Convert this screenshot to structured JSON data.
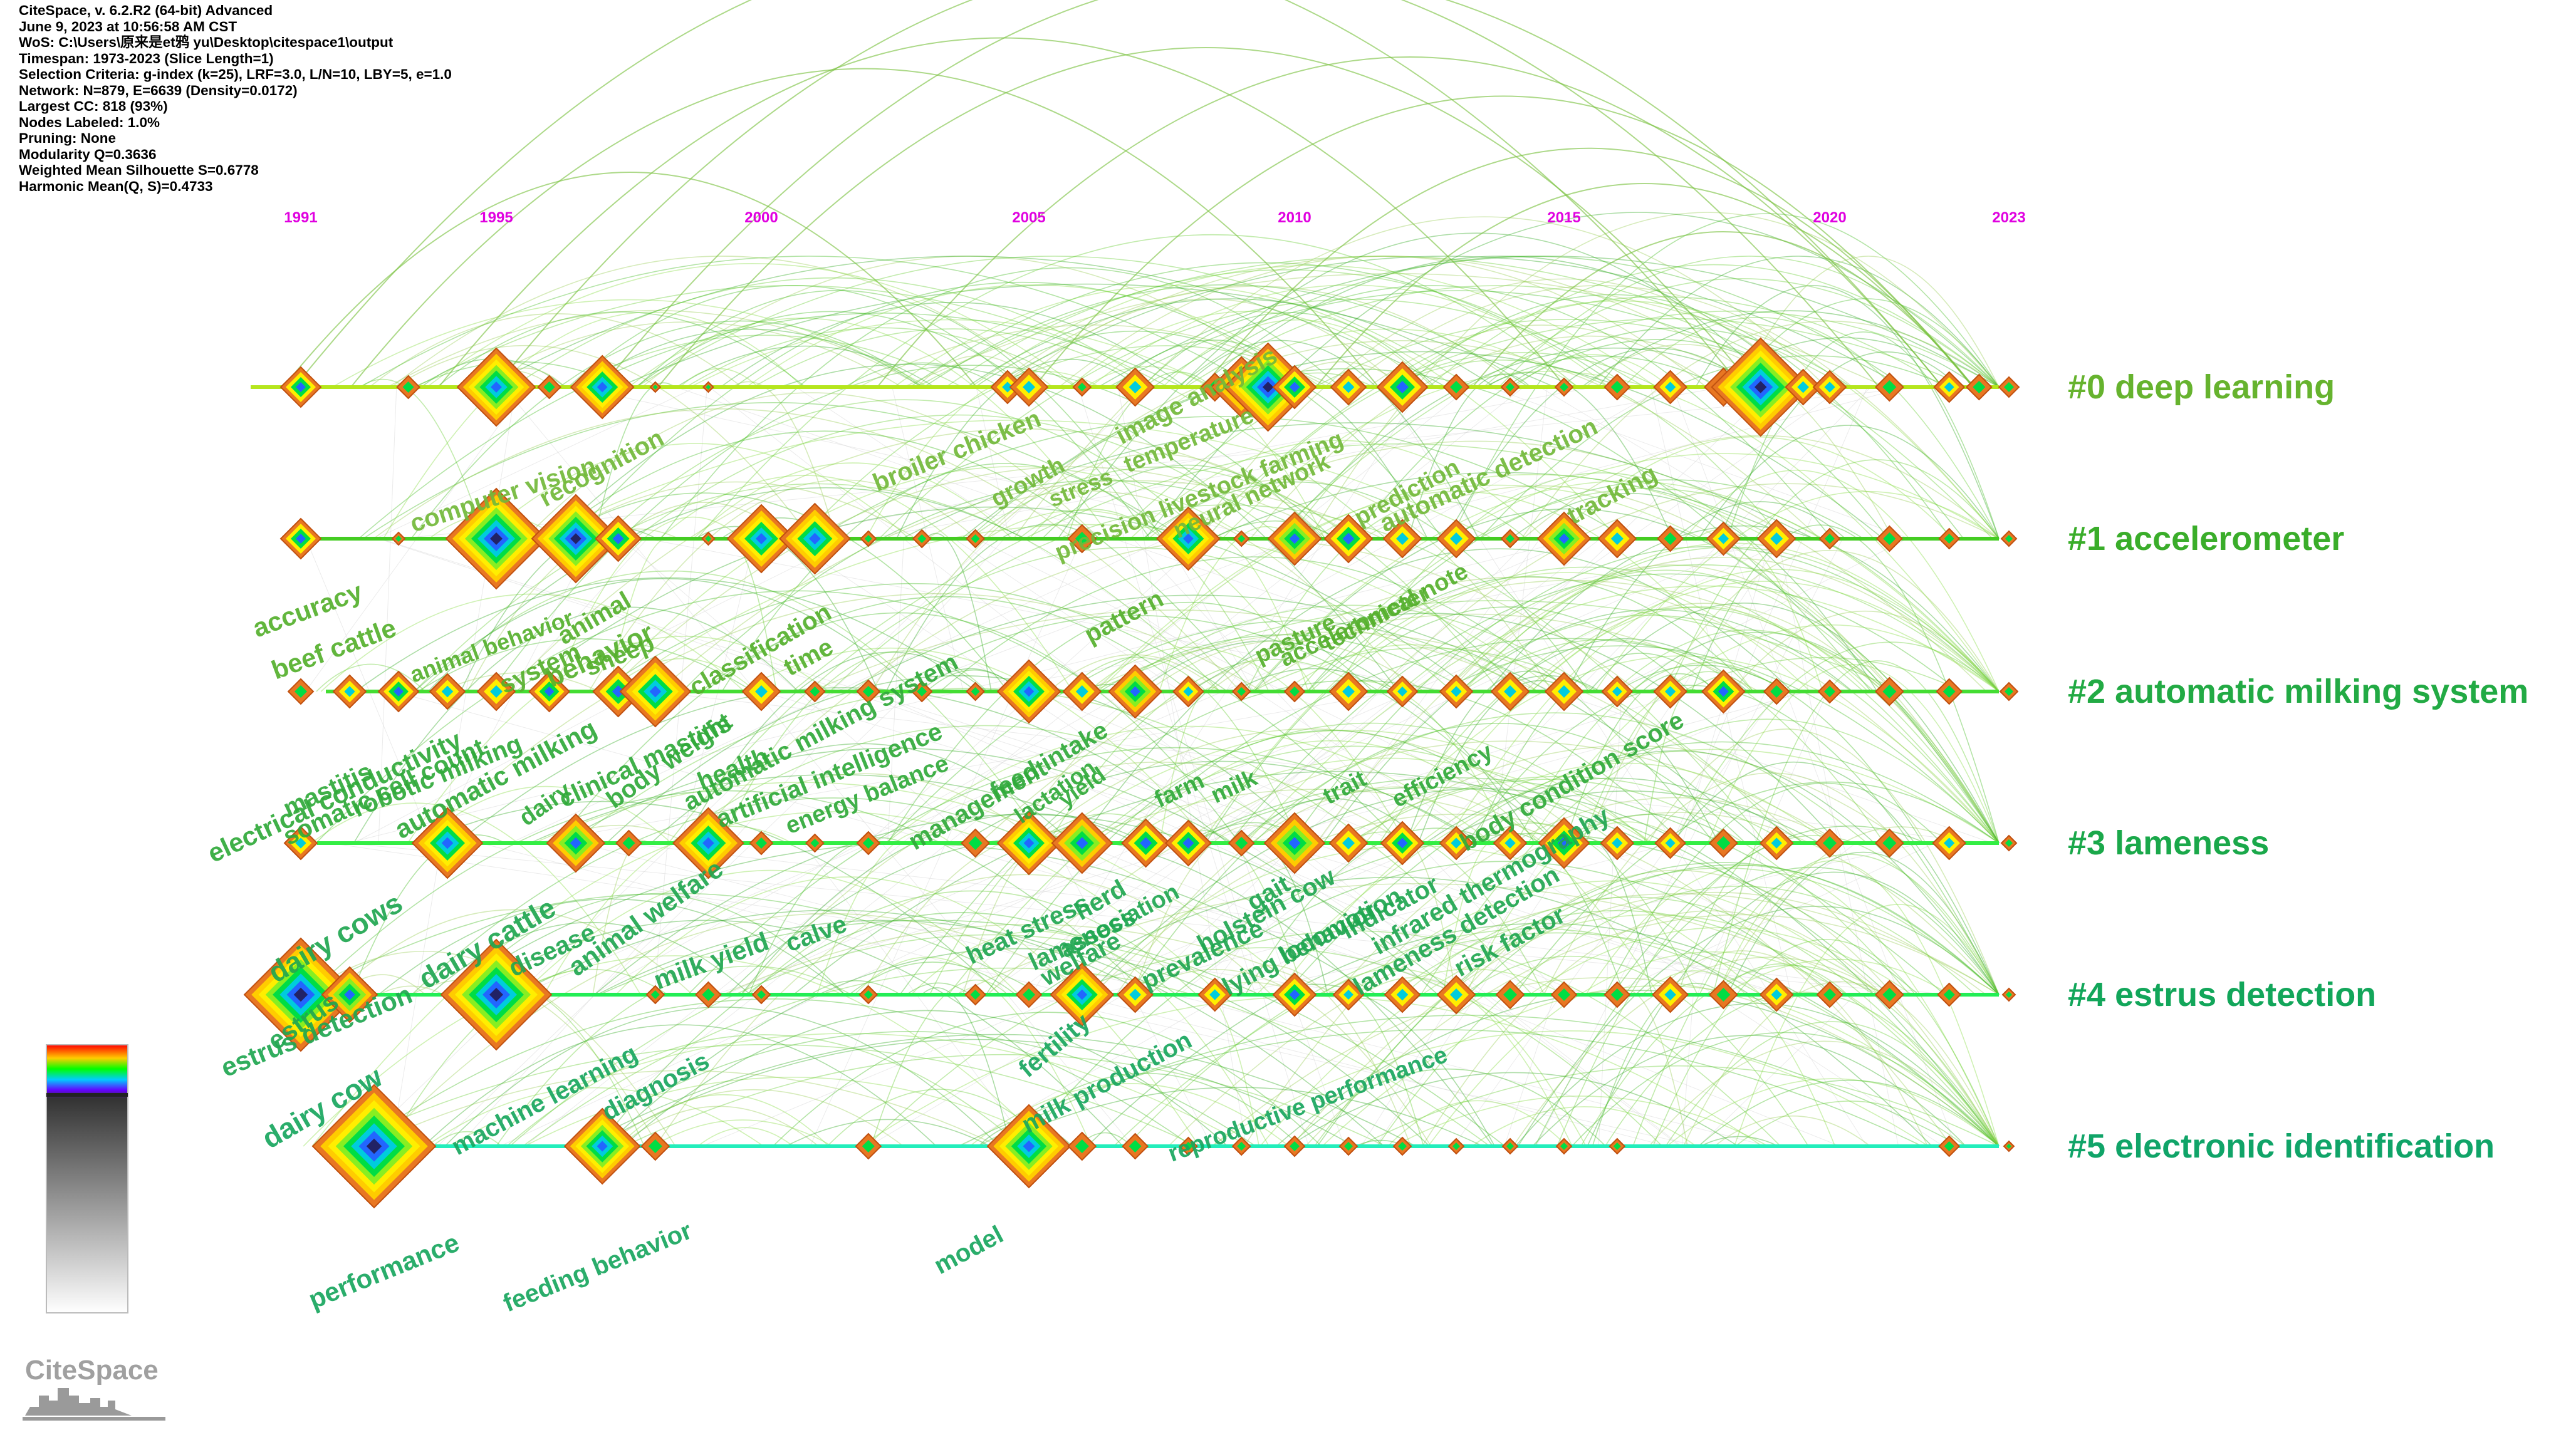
{
  "meta_lines": [
    "CiteSpace, v. 6.2.R2 (64-bit) Advanced",
    "June 9, 2023 at 10:56:58 AM CST",
    "WoS: C:\\Users\\原来是et鸦 yu\\Desktop\\citespace1\\output",
    "Timespan: 1973-2023 (Slice Length=1)",
    "Selection Criteria: g-index (k=25), LRF=3.0, L/N=10, LBY=5, e=1.0",
    "Network: N=879, E=6639 (Density=0.0172)",
    "Largest CC: 818 (93%)",
    "Nodes Labeled: 1.0%",
    "Pruning: None",
    "Modularity Q=0.3636",
    "Weighted Mean Silhouette S=0.6778",
    "Harmonic Mean(Q, S)=0.4733"
  ],
  "years": [
    "1991",
    "1995",
    "2000",
    "2005",
    "2010",
    "2015",
    "2020",
    "2023"
  ],
  "clusters": [
    {
      "label": "#0 deep learning",
      "color": "#66b32e",
      "line_color": "#b5e61d"
    },
    {
      "label": "#1 accelerometer",
      "color": "#3aad2a",
      "line_color": "#44cc22"
    },
    {
      "label": "#2 automatic milking system",
      "color": "#22aa44",
      "line_color": "#44dd33"
    },
    {
      "label": "#3 lameness",
      "color": "#1aa84a",
      "line_color": "#33ee44"
    },
    {
      "label": "#4 estrus detection",
      "color": "#12a65a",
      "line_color": "#22ee55"
    },
    {
      "label": "#5 electronic identification",
      "color": "#10a468",
      "line_color": "#22eebb"
    }
  ],
  "keywords": [
    "computer vision",
    "recognition",
    "broiler chicken",
    "growth",
    "stress",
    "image analysis",
    "temperature",
    "precision livestock farming",
    "neural network",
    "prediction",
    "automatic detection",
    "tracking",
    "accuracy",
    "beef cattle",
    "animal behavior",
    "animal",
    "system",
    "behavior",
    "sheep",
    "classification",
    "time",
    "pattern",
    "pasture",
    "accelerometer",
    "technical note",
    "electrical conductivity",
    "somatic cell count",
    "mastitis",
    "robotic milking",
    "automatic milking",
    "dairy",
    "clinical mastitis",
    "body weight",
    "health",
    "automatic milking system",
    "artificial intelligence",
    "energy balance",
    "management",
    "feed intake",
    "lactation",
    "yield",
    "farm",
    "milk",
    "trait",
    "efficiency",
    "body condition score",
    "dairy cows",
    "dairy cattle",
    "disease",
    "animal welfare",
    "milk yield",
    "calve",
    "heat stress",
    "lameness",
    "association",
    "welfare",
    "herd",
    "prevalence",
    "holstein cow",
    "gait",
    "lying behavior",
    "locomotion",
    "infrared thermography",
    "indicator",
    "lameness detection",
    "risk factor",
    "estrus",
    "estrus detection",
    "dairy cow",
    "machine learning",
    "diagnosis",
    "fertility",
    "milk production",
    "reproductive performance",
    "performance",
    "feeding behavior",
    "model"
  ],
  "logo_text": "CiteSpace"
}
